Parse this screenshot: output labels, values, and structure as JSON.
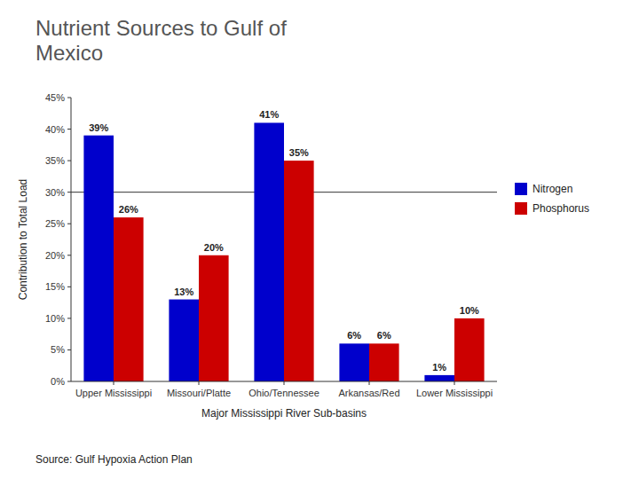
{
  "chart_data": {
    "type": "bar",
    "title": "Nutrient Sources to Gulf of\nMexico",
    "xlabel": "Major Mississippi River Sub-basins",
    "ylabel": "Contribution to Total Load",
    "annotations": [
      "Source:  Gulf Hypoxia Action Plan"
    ],
    "categories": [
      "Upper Mississippi",
      "Missouri/Platte",
      "Ohio/Tennessee",
      "Arkansas/Red",
      "Lower Mississippi"
    ],
    "series": [
      {
        "name": "Nitrogen",
        "color": "#0000CC",
        "values": [
          39,
          13,
          41,
          6,
          1
        ],
        "value_labels": [
          "39%",
          "13%",
          "41%",
          "6%",
          "1%"
        ]
      },
      {
        "name": "Phosphorus",
        "color": "#CC0000",
        "values": [
          26,
          20,
          35,
          6,
          10
        ],
        "value_labels": [
          "26%",
          "20%",
          "35%",
          "6%",
          "10%"
        ]
      }
    ],
    "hline": 30,
    "ylim": [
      0,
      45
    ],
    "yticks": [
      {
        "value": 0,
        "label": "0%"
      },
      {
        "value": 5,
        "label": "5%"
      },
      {
        "value": 10,
        "label": "10%"
      },
      {
        "value": 15,
        "label": "15%"
      },
      {
        "value": 20,
        "label": "20%"
      },
      {
        "value": 25,
        "label": "25%"
      },
      {
        "value": 30,
        "label": "30%"
      },
      {
        "value": 35,
        "label": "35%"
      },
      {
        "value": 40,
        "label": "40%"
      },
      {
        "value": 45,
        "label": "45%"
      }
    ],
    "data_labels": true,
    "grid": false,
    "legend": "right"
  }
}
